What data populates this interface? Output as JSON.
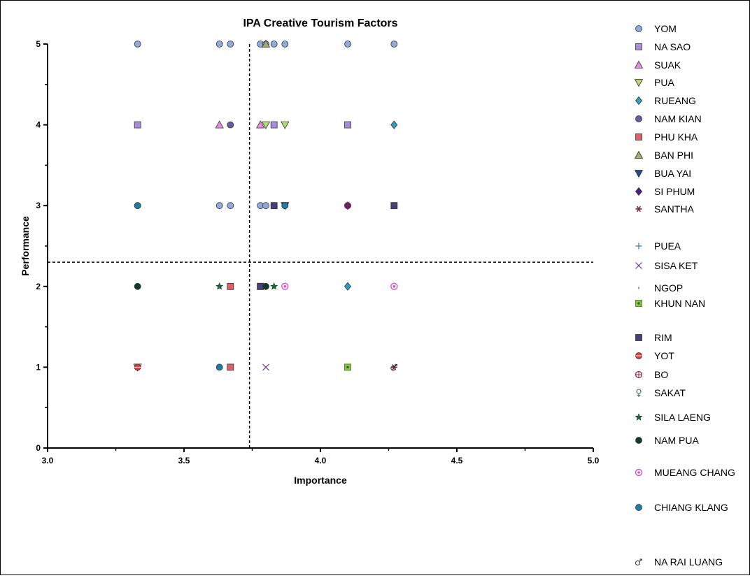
{
  "chart_data": {
    "type": "scatter",
    "title": "IPA Creative Tourism Factors",
    "xlabel": "Importance",
    "ylabel": "Performance",
    "xlim": [
      3.0,
      5.0
    ],
    "ylim": [
      0,
      5
    ],
    "x_ticks": [
      "3.0",
      "3.5",
      "4.0",
      "4.5",
      "5.0"
    ],
    "y_ticks": [
      "0",
      "1",
      "2",
      "3",
      "4",
      "5"
    ],
    "reference_lines": {
      "x": 3.74,
      "y": 2.3
    },
    "legend_position": "right",
    "series": [
      {
        "name": "YOM",
        "marker": "circle",
        "color": "#8FAADC",
        "points": [
          [
            3.33,
            5
          ],
          [
            3.63,
            5
          ],
          [
            3.67,
            5
          ],
          [
            3.78,
            5
          ],
          [
            3.8,
            5
          ],
          [
            3.83,
            5
          ],
          [
            3.87,
            5
          ],
          [
            4.1,
            5
          ],
          [
            4.27,
            5
          ],
          [
            3.33,
            3
          ],
          [
            3.63,
            3
          ],
          [
            3.67,
            3
          ],
          [
            3.78,
            3
          ],
          [
            3.8,
            3
          ]
        ]
      },
      {
        "name": "NA SAO",
        "marker": "square",
        "color": "#A98BE0",
        "points": [
          [
            3.33,
            4
          ],
          [
            3.83,
            4
          ],
          [
            4.1,
            4
          ],
          [
            3.78,
            2
          ]
        ]
      },
      {
        "name": "SUAK",
        "marker": "triangle-up",
        "color": "#E88BE0",
        "points": [
          [
            3.63,
            4
          ],
          [
            3.78,
            4
          ]
        ]
      },
      {
        "name": "PUA",
        "marker": "triangle-down",
        "color": "#B5DA6E",
        "points": [
          [
            3.8,
            4
          ],
          [
            3.87,
            4
          ],
          [
            3.33,
            1
          ]
        ]
      },
      {
        "name": "RUEANG",
        "marker": "diamond",
        "color": "#2E9FC6",
        "points": [
          [
            4.1,
            2
          ],
          [
            4.27,
            4
          ]
        ]
      },
      {
        "name": "NAM KIAN",
        "marker": "circle",
        "color": "#6A5AA0",
        "points": [
          [
            3.67,
            4
          ],
          [
            3.83,
            3
          ],
          [
            4.27,
            3
          ]
        ]
      },
      {
        "name": "PHU KHA",
        "marker": "square",
        "color": "#E0606A",
        "points": [
          [
            3.67,
            2
          ],
          [
            3.67,
            1
          ]
        ]
      },
      {
        "name": "BAN PHI",
        "marker": "triangle-up",
        "color": "#9BAE6A",
        "points": [
          [
            3.8,
            5
          ]
        ]
      },
      {
        "name": "BUA YAI",
        "marker": "triangle-down",
        "color": "#1F4E8C",
        "points": [
          [
            3.87,
            3
          ]
        ]
      },
      {
        "name": "SI PHUM",
        "marker": "diamond",
        "color": "#4B1D8C",
        "points": [
          [
            4.1,
            3
          ]
        ]
      },
      {
        "name": "SANTHA",
        "marker": "asterisk",
        "color": "#7A2A3A",
        "points": [
          [
            4.27,
            1
          ]
        ]
      },
      {
        "name": "PUEA",
        "marker": "plus",
        "color": "#3A6FBF",
        "points": []
      },
      {
        "name": "SISA KET",
        "marker": "cross",
        "color": "#6A3AB0",
        "points": [
          [
            3.8,
            1
          ]
        ]
      },
      {
        "name": "NGOP",
        "marker": "dash",
        "color": "#333333",
        "points": []
      },
      {
        "name": "KHUN NAN",
        "marker": "square-dot",
        "color": "#8BC34A",
        "points": [
          [
            4.1,
            1
          ]
        ]
      },
      {
        "name": "RIM",
        "marker": "square",
        "color": "#4A3F7A",
        "points": [
          [
            3.78,
            2
          ],
          [
            3.83,
            3
          ],
          [
            4.27,
            3
          ]
        ]
      },
      {
        "name": "YOT",
        "marker": "circle-line",
        "color": "#E53935",
        "points": [
          [
            3.33,
            1
          ]
        ]
      },
      {
        "name": "BO",
        "marker": "circle-plus",
        "color": "#8B2A4A",
        "points": [
          [
            4.1,
            3
          ]
        ]
      },
      {
        "name": "SAKAT",
        "marker": "female",
        "color": "#3D6E5A",
        "points": []
      },
      {
        "name": "SILA LAENG",
        "marker": "star",
        "color": "#1B6B3A",
        "points": [
          [
            3.63,
            2
          ],
          [
            3.83,
            2
          ]
        ]
      },
      {
        "name": "NAM PUA",
        "marker": "circle",
        "color": "#0F3B2E",
        "points": [
          [
            3.33,
            2
          ],
          [
            3.8,
            2
          ],
          [
            3.87,
            3
          ]
        ]
      },
      {
        "name": "MUEANG CHANG",
        "marker": "circle-dot",
        "color": "#D94FD0",
        "points": [
          [
            3.87,
            2
          ],
          [
            4.27,
            2
          ]
        ]
      },
      {
        "name": "CHIANG KLANG",
        "marker": "circle",
        "color": "#1B7FA8",
        "points": [
          [
            3.33,
            3
          ],
          [
            3.63,
            1
          ],
          [
            3.87,
            3
          ]
        ]
      },
      {
        "name": "NA RAI LUANG",
        "marker": "male",
        "color": "#333333",
        "points": [
          [
            4.27,
            1
          ]
        ]
      }
    ]
  }
}
